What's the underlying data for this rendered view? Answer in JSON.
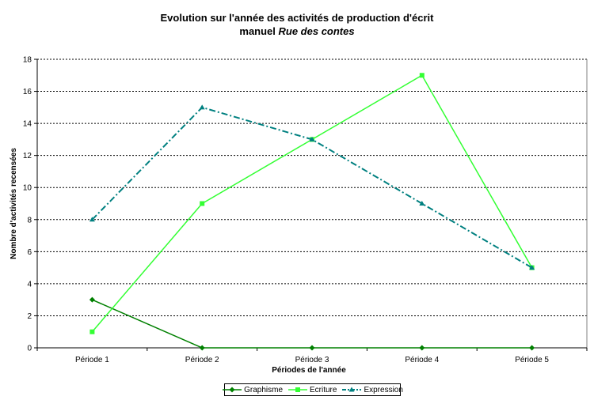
{
  "chart_data": {
    "type": "line",
    "title_line1": "Evolution sur l'année des activités de production d'écrit",
    "title_line2_prefix": "manuel ",
    "title_line2_italic": "Rue des contes",
    "xlabel": "Périodes de l'année",
    "ylabel": "Nombre d'activités recensées",
    "categories": [
      "Période 1",
      "Période 2",
      "Période 3",
      "Période 4",
      "Période 5"
    ],
    "ylim": [
      0,
      18
    ],
    "yticks": [
      0,
      2,
      4,
      6,
      8,
      10,
      12,
      14,
      16,
      18
    ],
    "grid": "horizontal-dashed",
    "legend_position": "bottom",
    "series": [
      {
        "name": "Graphisme",
        "values": [
          3,
          0,
          0,
          0,
          0
        ],
        "color": "#008000",
        "marker": "diamond",
        "dash": "solid"
      },
      {
        "name": "Ecriture",
        "values": [
          1,
          9,
          13,
          17,
          5
        ],
        "color": "#33ff33",
        "marker": "square",
        "dash": "solid"
      },
      {
        "name": "Expression",
        "values": [
          8,
          15,
          13,
          9,
          5
        ],
        "color": "#008080",
        "marker": "triangle",
        "dash": "dashdot"
      }
    ]
  }
}
